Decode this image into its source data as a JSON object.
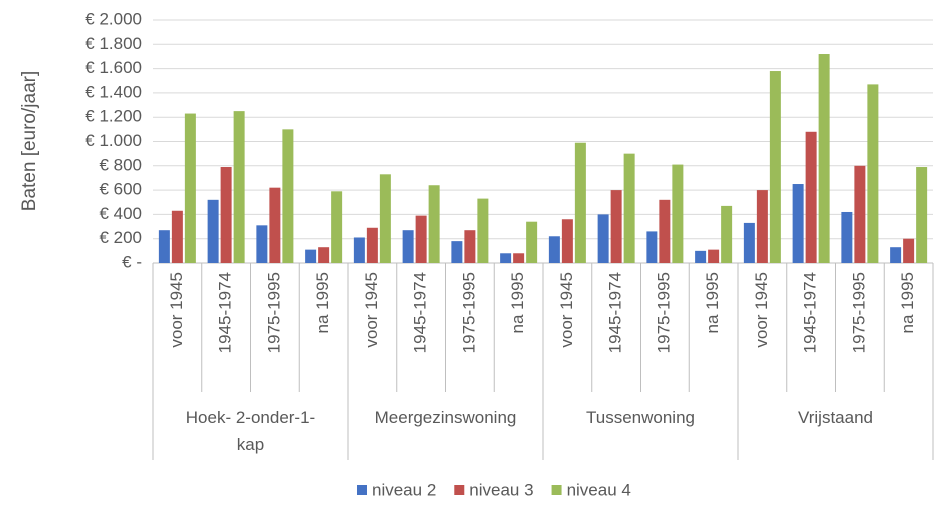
{
  "chart_data": {
    "type": "bar",
    "y_label": "Baten [euro/jaar]",
    "groups": [
      {
        "name": "Hoek- 2-onder-1-kap",
        "categories": [
          "voor 1945",
          "1945-1974",
          "1975-1995",
          "na 1995"
        ]
      },
      {
        "name": "Meergezinswoning",
        "categories": [
          "voor 1945",
          "1945-1974",
          "1975-1995",
          "na 1995"
        ]
      },
      {
        "name": "Tussenwoning",
        "categories": [
          "voor 1945",
          "1945-1974",
          "1975-1995",
          "na 1995"
        ]
      },
      {
        "name": "Vrijstaand",
        "categories": [
          "voor 1945",
          "1945-1974",
          "1975-1995",
          "na 1995"
        ]
      }
    ],
    "series": [
      {
        "name": "niveau 2",
        "color": "#4472c4",
        "values": [
          270,
          520,
          310,
          110,
          210,
          270,
          180,
          80,
          220,
          400,
          260,
          100,
          330,
          650,
          420,
          130
        ]
      },
      {
        "name": "niveau 3",
        "color": "#c0504d",
        "values": [
          430,
          790,
          620,
          130,
          290,
          390,
          270,
          80,
          360,
          600,
          520,
          110,
          600,
          1080,
          800,
          200
        ]
      },
      {
        "name": "niveau 4",
        "color": "#9bbb59",
        "values": [
          1230,
          1250,
          1100,
          590,
          730,
          640,
          530,
          340,
          990,
          900,
          810,
          470,
          1580,
          1720,
          1470,
          790
        ]
      }
    ],
    "ylim": [
      0,
      2000
    ],
    "yticks": [
      {
        "value": 0,
        "label": "€ -"
      },
      {
        "value": 200,
        "label": "€ 200"
      },
      {
        "value": 400,
        "label": "€ 400"
      },
      {
        "value": 600,
        "label": "€ 600"
      },
      {
        "value": 800,
        "label": "€ 800"
      },
      {
        "value": 1000,
        "label": "€ 1.000"
      },
      {
        "value": 1200,
        "label": "€ 1.200"
      },
      {
        "value": 1400,
        "label": "€ 1.400"
      },
      {
        "value": 1600,
        "label": "€ 1.600"
      },
      {
        "value": 1800,
        "label": "€ 1.800"
      },
      {
        "value": 2000,
        "label": "€ 2.000"
      }
    ],
    "grid": true,
    "legend": "bottom"
  }
}
